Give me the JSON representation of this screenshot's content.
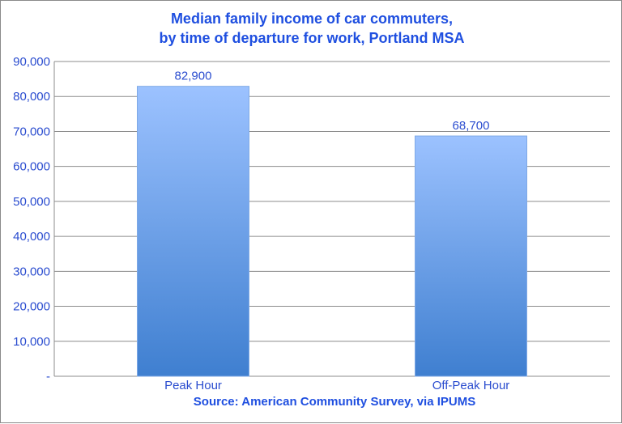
{
  "chart_data": {
    "type": "bar",
    "title_lines": [
      "Median family income of car commuters,",
      "by time of departure for work, Portland MSA"
    ],
    "categories": [
      "Peak Hour",
      "Off-Peak Hour"
    ],
    "values": [
      82900,
      68700
    ],
    "data_labels": [
      "82,900",
      "68,700"
    ],
    "ylim": [
      0,
      90000
    ],
    "y_ticks": [
      0,
      10000,
      20000,
      30000,
      40000,
      50000,
      60000,
      70000,
      80000,
      90000
    ],
    "y_tick_labels": [
      "-",
      "10,000",
      "20,000",
      "30,000",
      "40,000",
      "50,000",
      "60,000",
      "70,000",
      "80,000",
      "90,000"
    ],
    "xlabel": "",
    "ylabel": "",
    "source_note": "Source: American Community Survey, via IPUMS",
    "grid": true,
    "legend": "none",
    "colors": {
      "text": "#1f4fe0",
      "axis_text": "#2a4ccf",
      "bar_top": "#9cc2ff",
      "bar_bottom": "#3f7fd0",
      "grid": "#8c8c8c"
    }
  }
}
